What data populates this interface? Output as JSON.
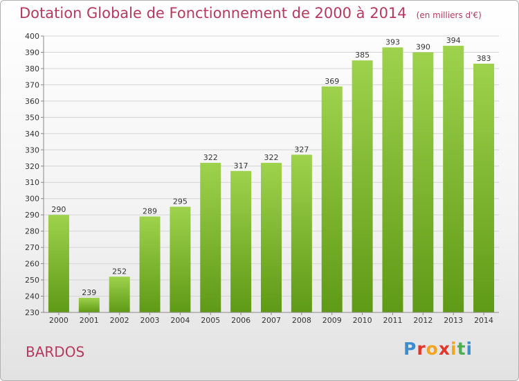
{
  "title": "Dotation Globale de Fonctionnement de 2000 à 2014",
  "unit_note": "(en milliers d'€)",
  "commune": "BARDOS",
  "logo": {
    "letters": [
      "P",
      "r",
      "o",
      "x",
      "i",
      "t",
      "i"
    ],
    "colors": [
      "#3a8fd4",
      "#e5342a",
      "#f2a51e",
      "#e5342a",
      "#f2a51e",
      "#4caf50",
      "#3a8fd4"
    ]
  },
  "colors": {
    "title": "#b5395f",
    "bar_top": "#9ed24c",
    "bar_bottom": "#5f9a16",
    "grid": "#d4d4d4",
    "axis_text": "#333333"
  },
  "chart_data": {
    "type": "bar",
    "title": "Dotation Globale de Fonctionnement de 2000 à 2014",
    "xlabel": "",
    "ylabel": "",
    "categories": [
      "2000",
      "2001",
      "2002",
      "2003",
      "2004",
      "2005",
      "2006",
      "2007",
      "2008",
      "2009",
      "2010",
      "2011",
      "2012",
      "2013",
      "2014"
    ],
    "values": [
      290,
      239,
      252,
      289,
      295,
      322,
      317,
      322,
      327,
      369,
      385,
      393,
      390,
      394,
      383
    ],
    "ylim": [
      230,
      400
    ],
    "yticks": [
      230,
      240,
      250,
      260,
      270,
      280,
      290,
      300,
      310,
      320,
      330,
      340,
      350,
      360,
      370,
      380,
      390,
      400
    ],
    "grid": true,
    "data_labels": true
  }
}
